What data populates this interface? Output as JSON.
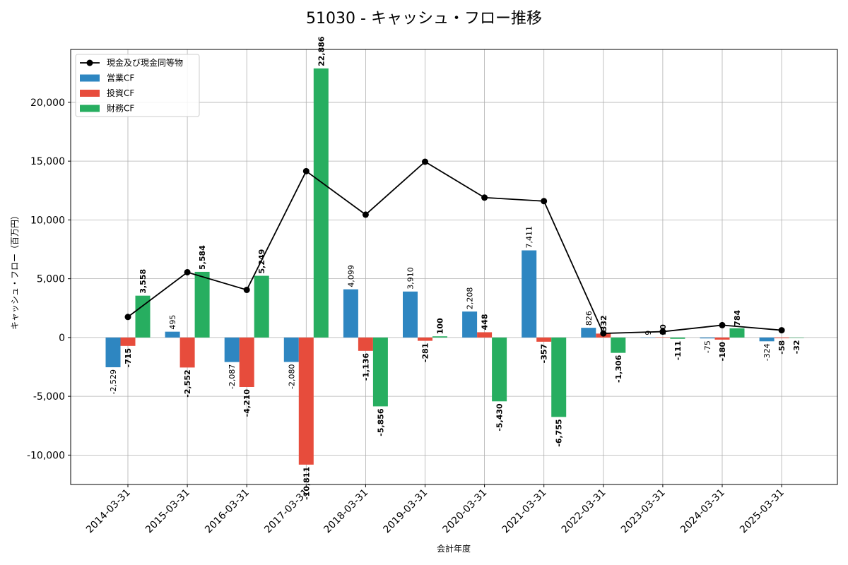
{
  "chart_data": {
    "type": "bar",
    "title": "51030 - キャッシュ・フロー推移",
    "xlabel": "会計年度",
    "ylabel": "キャッシュ・フロー（百万円）",
    "ylim": [
      -12500,
      24500
    ],
    "yticks": [
      -10000,
      -5000,
      0,
      5000,
      10000,
      15000,
      20000
    ],
    "ytick_labels": [
      "-10,000",
      "-5,000",
      "0",
      "5,000",
      "10,000",
      "15,000",
      "20,000"
    ],
    "categories": [
      "2014-03-31",
      "2015-03-31",
      "2016-03-31",
      "2017-03-31",
      "2018-03-31",
      "2019-03-31",
      "2020-03-31",
      "2021-03-31",
      "2022-03-31",
      "2023-03-31",
      "2024-03-31",
      "2025-03-31"
    ],
    "series": [
      {
        "name": "営業CF",
        "type": "bar",
        "color": "#2e86c1",
        "label_weight": "normal",
        "values": [
          -2529,
          495,
          -2087,
          -2080,
          4099,
          3910,
          2208,
          7411,
          826,
          9,
          -75,
          -324
        ],
        "labels": [
          "-2,529",
          "495",
          "-2,087",
          "-2,080",
          "4,099",
          "3,910",
          "2,208",
          "7,411",
          "826",
          "9",
          "-75",
          "-324"
        ]
      },
      {
        "name": "投資CF",
        "type": "bar",
        "color": "#e74c3c",
        "label_weight": "bold",
        "values": [
          -715,
          -2552,
          -4210,
          -10811,
          -1136,
          -281,
          448,
          -357,
          332,
          30,
          -180,
          -58
        ],
        "labels": [
          "-715",
          "-2,552",
          "-4,210",
          "-10,811",
          "-1,136",
          "-281",
          "448",
          "-357",
          "332",
          "30",
          "-180",
          "-58"
        ]
      },
      {
        "name": "財務CF",
        "type": "bar",
        "color": "#27ae60",
        "label_weight": "bold",
        "values": [
          3558,
          5584,
          5249,
          22886,
          -5856,
          100,
          -5430,
          -6755,
          -1306,
          -111,
          784,
          -32
        ],
        "labels": [
          "3,558",
          "5,584",
          "5,249",
          "22,886",
          "-5,856",
          "100",
          "-5,430",
          "-6,755",
          "-1,306",
          "-111",
          "784",
          "-32"
        ]
      },
      {
        "name": "現金及び現金同等物",
        "type": "line",
        "color": "#000000",
        "values": [
          1750,
          5550,
          4050,
          14150,
          10450,
          14950,
          11900,
          11600,
          350,
          500,
          1050,
          620
        ]
      }
    ],
    "legend": {
      "position": "upper-left",
      "entries": [
        "現金及び現金同等物",
        "営業CF",
        "投資CF",
        "財務CF"
      ]
    },
    "grid": true
  }
}
